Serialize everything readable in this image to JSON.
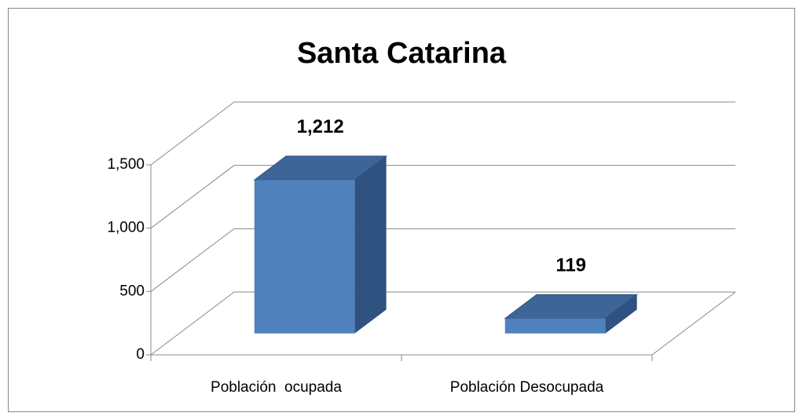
{
  "chart_data": {
    "type": "bar3d",
    "title": "Santa Catarina",
    "categories": [
      "Población  ocupada",
      "Población Desocupada"
    ],
    "values": [
      1212,
      119
    ],
    "value_labels": [
      "1,212",
      "119"
    ],
    "color": "#4f81bd",
    "ylim": [
      0,
      1500
    ],
    "yticks": [
      0,
      500,
      {
        "value": 1000,
        "label": "1,000"
      },
      {
        "value": 1500,
        "label": "1,500"
      }
    ],
    "grid": true
  }
}
